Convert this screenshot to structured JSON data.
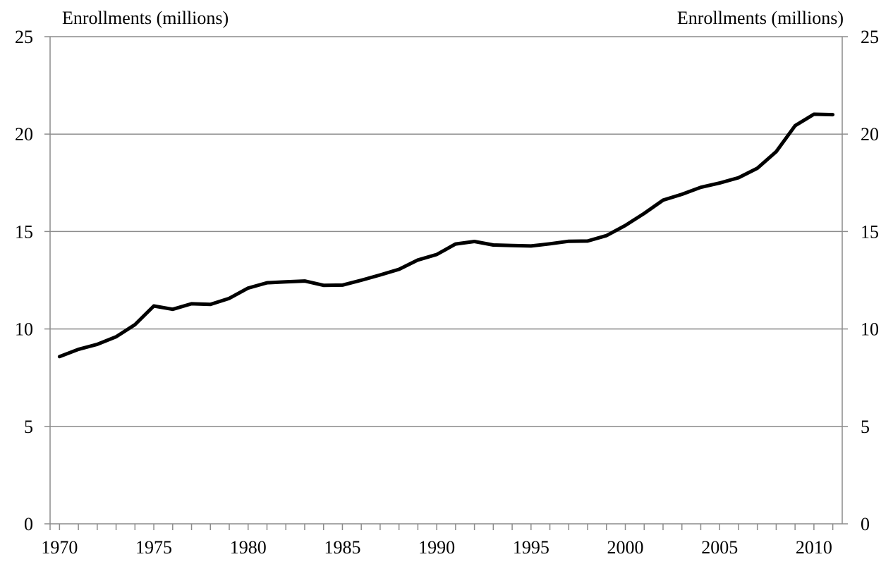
{
  "chart_data": {
    "type": "line",
    "title": "",
    "ylabel_left": "Enrollments (millions)",
    "ylabel_right": "Enrollments (millions)",
    "xlabel": "",
    "ylim": [
      0,
      25
    ],
    "xlim": [
      1969.5,
      2011.5
    ],
    "y_ticks": [
      0,
      5,
      10,
      15,
      20,
      25
    ],
    "x_tick_labels": [
      1970,
      1975,
      1980,
      1985,
      1990,
      1995,
      2000,
      2005,
      2010
    ],
    "grid": true,
    "legend": "none",
    "series_color": "#000000",
    "series": [
      {
        "x": [
          1970,
          1971,
          1972,
          1973,
          1974,
          1975,
          1976,
          1977,
          1978,
          1979,
          1980,
          1981,
          1982,
          1983,
          1984,
          1985,
          1986,
          1987,
          1988,
          1989,
          1990,
          1991,
          1992,
          1993,
          1994,
          1995,
          1996,
          1997,
          1998,
          1999,
          2000,
          2001,
          2002,
          2003,
          2004,
          2005,
          2006,
          2007,
          2008,
          2009,
          2010,
          2011
        ],
        "values": [
          8.58,
          8.95,
          9.21,
          9.6,
          10.22,
          11.18,
          11.01,
          11.29,
          11.26,
          11.57,
          12.1,
          12.37,
          12.42,
          12.46,
          12.24,
          12.25,
          12.5,
          12.77,
          13.06,
          13.54,
          13.82,
          14.36,
          14.49,
          14.31,
          14.28,
          14.26,
          14.37,
          14.5,
          14.51,
          14.79,
          15.31,
          15.93,
          16.61,
          16.91,
          17.27,
          17.49,
          17.76,
          18.25,
          19.1,
          20.43,
          21.02,
          21.0
        ]
      }
    ]
  }
}
